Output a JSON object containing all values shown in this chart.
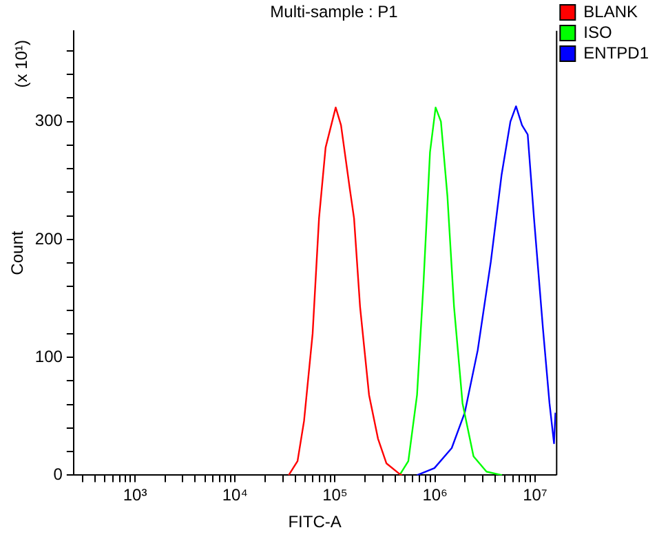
{
  "chart_data": {
    "type": "line",
    "title": "Multi-sample : P1",
    "xlabel": "FITC-A",
    "ylabel": "Count",
    "annotations": [
      "(x 10¹)"
    ],
    "log": "x",
    "legend": "top right",
    "marker": "none",
    "line_style": "solid",
    "grid": false,
    "xlim": [
      243,
      16200000
    ],
    "ylim": [
      0,
      377
    ],
    "xticks": [
      {
        "value": 300,
        "label": null
      },
      {
        "value": 400,
        "label": null
      },
      {
        "value": 500,
        "label": null
      },
      {
        "value": 600,
        "label": null
      },
      {
        "value": 700,
        "label": null
      },
      {
        "value": 800,
        "label": null
      },
      {
        "value": 900,
        "label": null
      },
      {
        "value": 1000,
        "label": "10³"
      },
      {
        "value": 2000,
        "label": null
      },
      {
        "value": 3000,
        "label": null
      },
      {
        "value": 4000,
        "label": null
      },
      {
        "value": 5000,
        "label": null
      },
      {
        "value": 6000,
        "label": null
      },
      {
        "value": 7000,
        "label": null
      },
      {
        "value": 8000,
        "label": null
      },
      {
        "value": 9000,
        "label": null
      },
      {
        "value": 10000,
        "label": "10⁴"
      },
      {
        "value": 20000,
        "label": null
      },
      {
        "value": 30000,
        "label": null
      },
      {
        "value": 40000,
        "label": null
      },
      {
        "value": 50000,
        "label": null
      },
      {
        "value": 60000,
        "label": null
      },
      {
        "value": 70000,
        "label": null
      },
      {
        "value": 80000,
        "label": null
      },
      {
        "value": 90000,
        "label": null
      },
      {
        "value": 100000,
        "label": "10⁵"
      },
      {
        "value": 200000,
        "label": null
      },
      {
        "value": 300000,
        "label": null
      },
      {
        "value": 400000,
        "label": null
      },
      {
        "value": 500000,
        "label": null
      },
      {
        "value": 600000,
        "label": null
      },
      {
        "value": 700000,
        "label": null
      },
      {
        "value": 800000,
        "label": null
      },
      {
        "value": 900000,
        "label": null
      },
      {
        "value": 1000000,
        "label": "10⁶"
      },
      {
        "value": 2000000,
        "label": null
      },
      {
        "value": 3000000,
        "label": null
      },
      {
        "value": 4000000,
        "label": null
      },
      {
        "value": 5000000,
        "label": null
      },
      {
        "value": 6000000,
        "label": null
      },
      {
        "value": 7000000,
        "label": null
      },
      {
        "value": 8000000,
        "label": null
      },
      {
        "value": 9000000,
        "label": null
      },
      {
        "value": 10000000,
        "label": "10⁷"
      }
    ],
    "yticks": [
      0,
      {
        "value": 20,
        "label": null
      },
      {
        "value": 40,
        "label": null
      },
      {
        "value": 60,
        "label": null
      },
      {
        "value": 80,
        "label": null
      },
      100,
      {
        "value": 120,
        "label": null
      },
      {
        "value": 140,
        "label": null
      },
      {
        "value": 160,
        "label": null
      },
      {
        "value": 180,
        "label": null
      },
      200,
      {
        "value": 220,
        "label": null
      },
      {
        "value": 240,
        "label": null
      },
      {
        "value": 260,
        "label": null
      },
      {
        "value": 280,
        "label": null
      },
      300,
      {
        "value": 320,
        "label": null
      },
      {
        "value": 340,
        "label": null
      },
      {
        "value": 360,
        "label": null
      }
    ],
    "series": [
      {
        "name": "BLANK",
        "color": "#ff0000",
        "x": [
          34400,
          42200,
          49000,
          59700,
          69200,
          80500,
          101600,
          114800,
          140000,
          155000,
          178000,
          219000,
          269000,
          327000,
          442000,
          468000
        ],
        "values": [
          0,
          12,
          46,
          120,
          218,
          278,
          312,
          297,
          244,
          218,
          143,
          68,
          31,
          10,
          1,
          0
        ]
      },
      {
        "name": "ISO",
        "color": "#00ff00",
        "x": [
          442000,
          541000,
          661000,
          766000,
          891000,
          1014000,
          1146000,
          1330000,
          1549000,
          1884000,
          2427000,
          3273000,
          4677000
        ],
        "values": [
          0,
          12,
          68,
          162,
          274,
          312,
          300,
          237,
          143,
          61,
          16,
          3,
          0
        ]
      },
      {
        "name": "ENTPD1",
        "color": "#0000ff",
        "x": [
          661000,
          986000,
          1469000,
          1982000,
          2673000,
          3614000,
          4634000,
          5675000,
          6457000,
          7413000,
          8453000,
          9772000,
          12020000,
          13960000,
          15490000,
          16000000
        ],
        "values": [
          0,
          6,
          23,
          53,
          106,
          181,
          255,
          300,
          313,
          297,
          289,
          218,
          124,
          61,
          27,
          53
        ]
      }
    ]
  }
}
